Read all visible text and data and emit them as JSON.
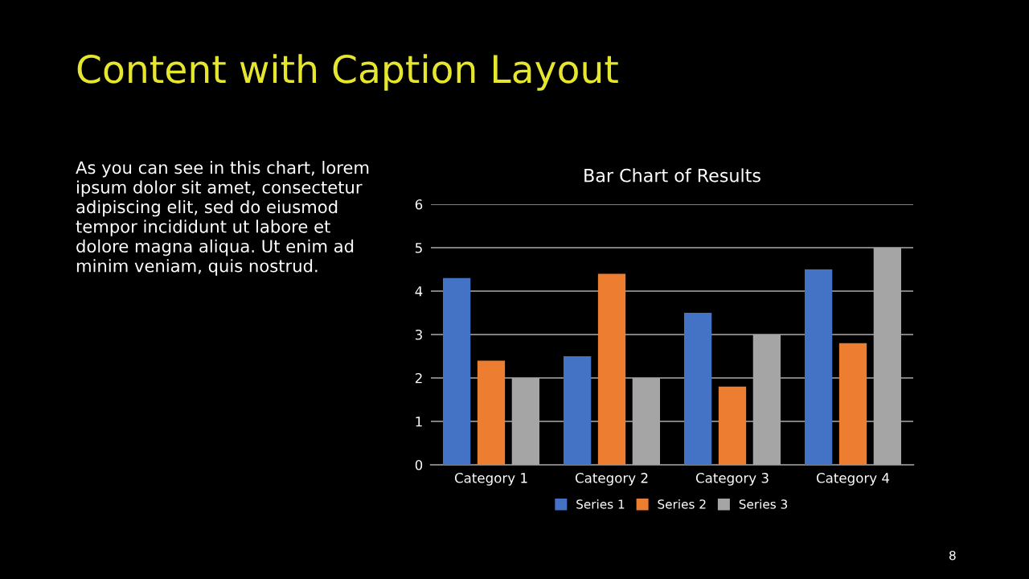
{
  "chart_data": {
    "type": "bar",
    "title": "Content with Caption Layout",
    "subtitle": "Bar Chart of Results",
    "annotations": [
      "As you can see in this chart, lorem\nipsum dolor sit amet, consectetur\nadipiscing elit, sed do eiusmod\ntempor incididunt ut labore et\ndolore magna aliqua. Ut enim ad\nminim veniam, quis nostrud.",
      "8"
    ],
    "categories": [
      "Category 1",
      "Category 2",
      "Category 3",
      "Category 4"
    ],
    "series": [
      {
        "name": "Series 1",
        "color": "#4472c4",
        "values": [
          4.3,
          2.5,
          3.5,
          4.5
        ]
      },
      {
        "name": "Series 2",
        "color": "#ed7d31",
        "values": [
          2.4,
          4.4,
          1.8,
          2.8
        ]
      },
      {
        "name": "Series 3",
        "color": "#a5a5a5",
        "values": [
          2,
          2,
          3,
          5
        ]
      }
    ],
    "ylim": [
      0,
      6
    ],
    "yticks": [
      0,
      1,
      2,
      3,
      4,
      5,
      6
    ],
    "grid": "y",
    "legend": "bottom"
  }
}
